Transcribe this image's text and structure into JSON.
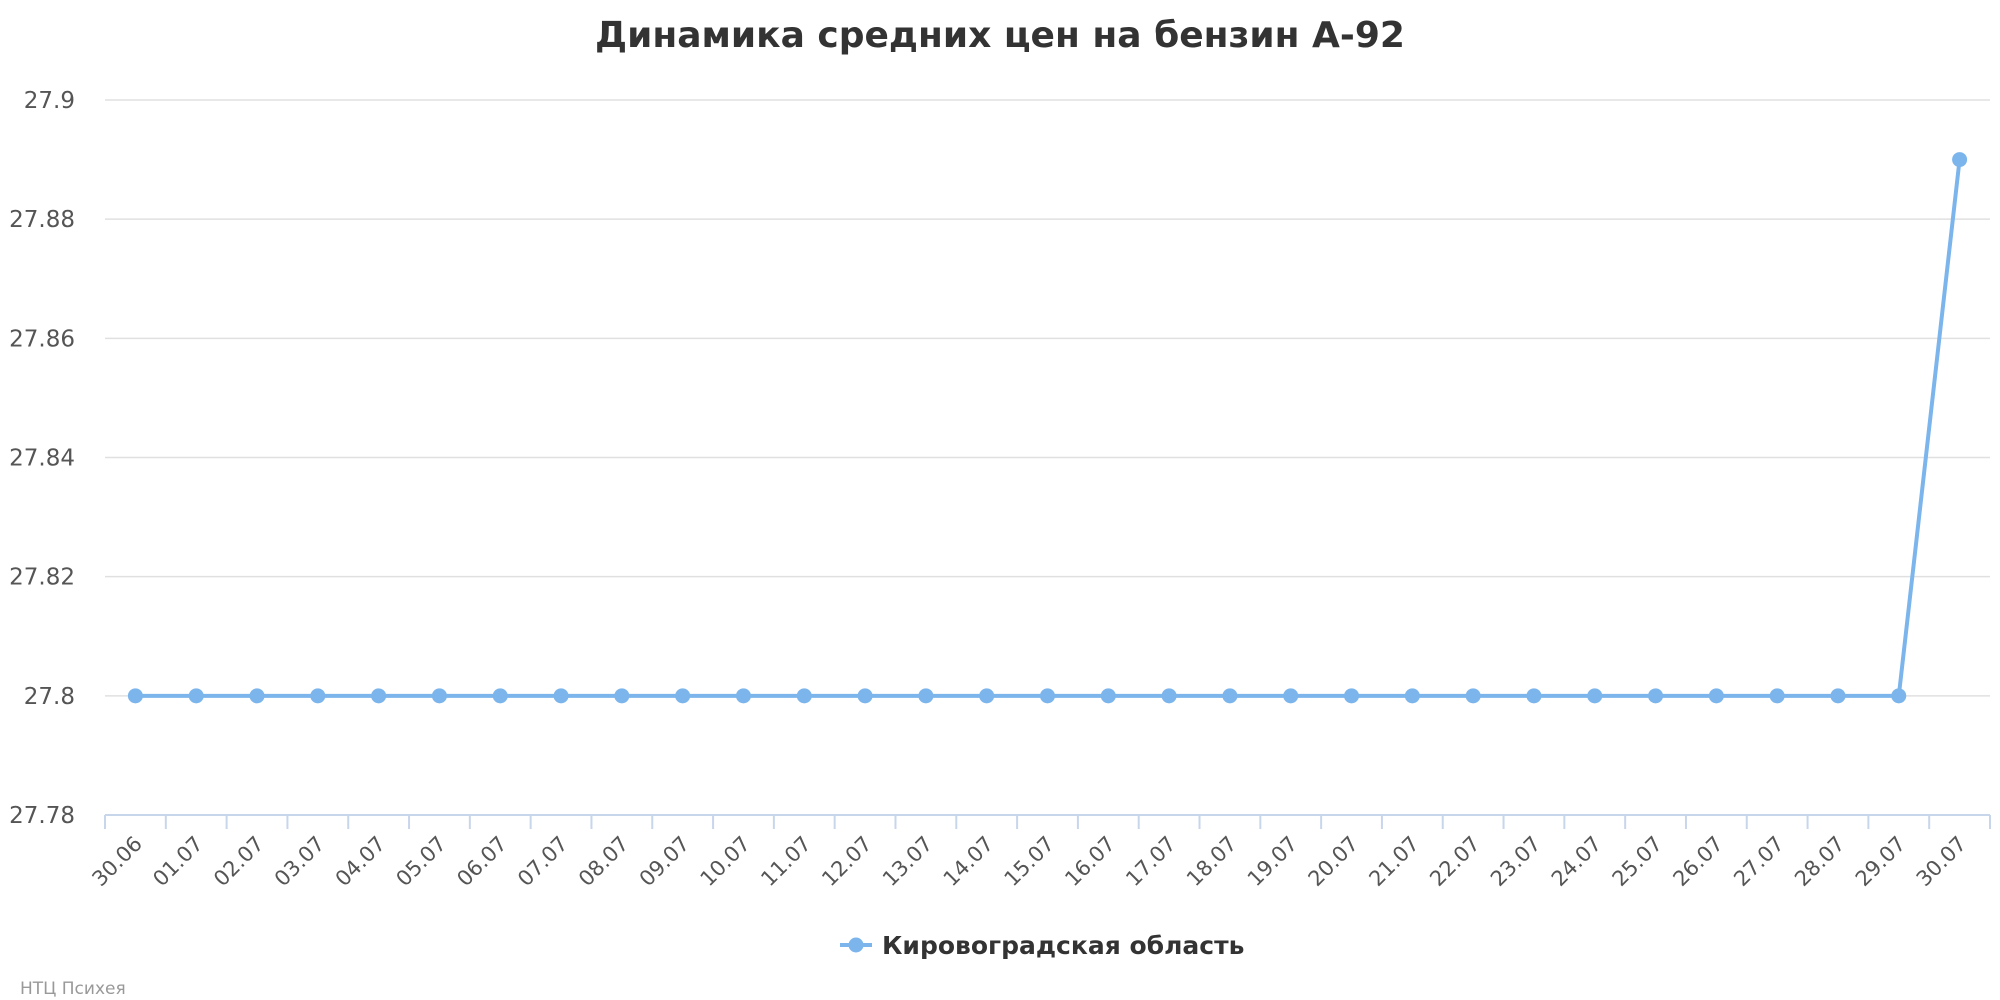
{
  "chart_data": {
    "type": "line",
    "title": "Динамика средних цен на бензин А-92",
    "xlabel": "",
    "ylabel": "",
    "categories": [
      "30.06",
      "01.07",
      "02.07",
      "03.07",
      "04.07",
      "05.07",
      "06.07",
      "07.07",
      "08.07",
      "09.07",
      "10.07",
      "11.07",
      "12.07",
      "13.07",
      "14.07",
      "15.07",
      "16.07",
      "17.07",
      "18.07",
      "19.07",
      "20.07",
      "21.07",
      "22.07",
      "23.07",
      "24.07",
      "25.07",
      "26.07",
      "27.07",
      "28.07",
      "29.07",
      "30.07"
    ],
    "series": [
      {
        "name": "Кировоградская область",
        "color": "#7cb5ec",
        "values": [
          27.8,
          27.8,
          27.8,
          27.8,
          27.8,
          27.8,
          27.8,
          27.8,
          27.8,
          27.8,
          27.8,
          27.8,
          27.8,
          27.8,
          27.8,
          27.8,
          27.8,
          27.8,
          27.8,
          27.8,
          27.8,
          27.8,
          27.8,
          27.8,
          27.8,
          27.8,
          27.8,
          27.8,
          27.8,
          27.8,
          27.89
        ]
      }
    ],
    "ylim": [
      27.78,
      27.9
    ],
    "yticks": [
      "27.78",
      "27.8",
      "27.82",
      "27.84",
      "27.86",
      "27.88",
      "27.9"
    ],
    "grid": true,
    "legend_position": "bottom-center",
    "marker": "circle"
  },
  "credit": "НТЦ Психея"
}
